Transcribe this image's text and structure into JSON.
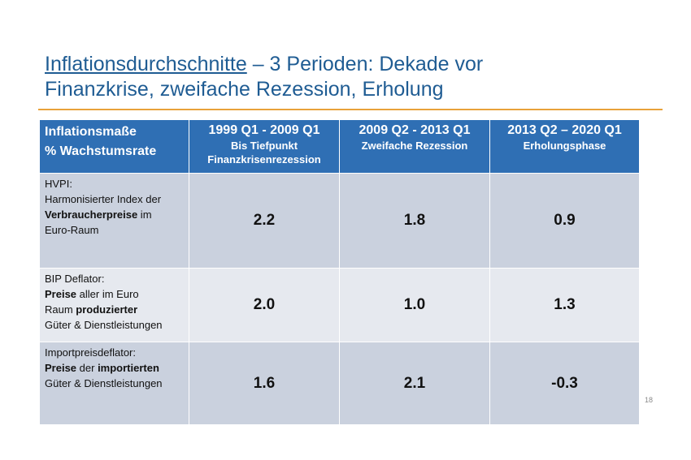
{
  "title": {
    "underlined": "Inflationsdurchschnitte",
    "rest_line1": " – 3 Perioden:  Dekade vor",
    "line2": "Finanzkrise, zweifache Rezession,  Erholung"
  },
  "table": {
    "header": {
      "measure_line1": "Inflationsmaße",
      "measure_line2": "% Wachstumsrate",
      "periods": [
        {
          "range": "1999 Q1  - 2009 Q1",
          "desc": "Bis Tiefpunkt Finanzkrisenrezession"
        },
        {
          "range": "2009 Q2  - 2013 Q1",
          "desc": "Zweifache Rezession"
        },
        {
          "range": "2013 Q2 – 2020 Q1",
          "desc": "Erholungsphase"
        }
      ]
    },
    "rows": [
      {
        "label_line1": "HVPI:",
        "label_line2": "Harmonisierter Index der",
        "label_bold": "Verbraucherpreise",
        "label_line3_rest": " im",
        "label_line4": "Euro-Raum",
        "values": [
          "2.2",
          "1.8",
          "0.9"
        ]
      },
      {
        "label_line1": "BIP Deflator:",
        "label_bold1": "Preise",
        "label_line2_rest": " aller im Euro",
        "label_line3_start": "Raum ",
        "label_bold2": "produzierter",
        "label_line4": "Güter & Dienstleistungen",
        "values": [
          "2.0",
          "1.0",
          "1.3"
        ]
      },
      {
        "label_line1": "Importpreisdeflator:",
        "label_bold1": "Preise",
        "label_mid": " der ",
        "label_bold2": "importierten",
        "label_line3": "Güter & Dienstleistungen",
        "values": [
          "1.6",
          "2.1",
          "-0.3"
        ]
      }
    ]
  },
  "page_number": "18"
}
